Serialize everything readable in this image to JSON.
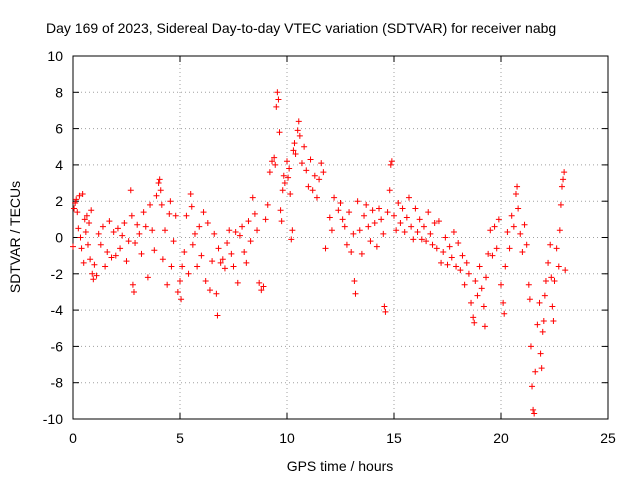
{
  "chart_data": {
    "type": "scatter",
    "title": "Day 169 of 2023, Sidereal Day-to-day VTEC variation (SDTVAR) for receiver nabg",
    "xlabel": "GPS time / hours",
    "ylabel": "SDTVAR / TECUs",
    "xlim": [
      0,
      25
    ],
    "ylim": [
      -10,
      10
    ],
    "xticks": [
      0,
      5,
      10,
      15,
      20,
      25
    ],
    "yticks": [
      -10,
      -8,
      -6,
      -4,
      -2,
      0,
      2,
      4,
      6,
      8,
      10
    ],
    "grid": true,
    "marker": "+",
    "color": "#ff0000",
    "series": [
      {
        "name": "SDTVAR",
        "points": [
          [
            0.0,
            -0.5
          ],
          [
            0.05,
            1.6
          ],
          [
            0.1,
            1.9
          ],
          [
            0.15,
            2.1
          ],
          [
            0.2,
            1.4
          ],
          [
            0.25,
            0.5
          ],
          [
            0.3,
            2.3
          ],
          [
            0.35,
            0.0
          ],
          [
            0.4,
            -0.6
          ],
          [
            0.45,
            2.4
          ],
          [
            0.5,
            -1.4
          ],
          [
            0.55,
            1.0
          ],
          [
            0.6,
            0.3
          ],
          [
            0.65,
            1.2
          ],
          [
            0.7,
            -0.4
          ],
          [
            0.75,
            0.8
          ],
          [
            0.8,
            -1.2
          ],
          [
            0.85,
            1.5
          ],
          [
            0.9,
            -2.0
          ],
          [
            0.95,
            -2.3
          ],
          [
            1.0,
            -1.5
          ],
          [
            1.1,
            -2.1
          ],
          [
            1.2,
            0.2
          ],
          [
            1.3,
            -0.4
          ],
          [
            1.4,
            0.6
          ],
          [
            1.5,
            -1.6
          ],
          [
            1.6,
            -0.8
          ],
          [
            1.7,
            0.9
          ],
          [
            1.8,
            -1.1
          ],
          [
            1.9,
            0.3
          ],
          [
            2.0,
            -1.0
          ],
          [
            2.1,
            0.5
          ],
          [
            2.2,
            -0.6
          ],
          [
            2.3,
            0.1
          ],
          [
            2.4,
            0.8
          ],
          [
            2.5,
            -1.3
          ],
          [
            2.6,
            -0.2
          ],
          [
            2.7,
            2.6
          ],
          [
            2.75,
            1.2
          ],
          [
            2.8,
            -2.6
          ],
          [
            2.85,
            -3.0
          ],
          [
            2.9,
            -0.3
          ],
          [
            3.0,
            0.7
          ],
          [
            3.1,
            0.2
          ],
          [
            3.2,
            -0.9
          ],
          [
            3.3,
            1.4
          ],
          [
            3.4,
            0.6
          ],
          [
            3.5,
            -2.2
          ],
          [
            3.6,
            1.8
          ],
          [
            3.7,
            0.4
          ],
          [
            3.8,
            -0.7
          ],
          [
            3.9,
            2.3
          ],
          [
            4.0,
            3.0
          ],
          [
            4.05,
            3.2
          ],
          [
            4.1,
            2.6
          ],
          [
            4.15,
            1.8
          ],
          [
            4.2,
            -1.2
          ],
          [
            4.3,
            0.4
          ],
          [
            4.4,
            -2.6
          ],
          [
            4.5,
            1.3
          ],
          [
            4.55,
            2.0
          ],
          [
            4.6,
            -1.6
          ],
          [
            4.7,
            -0.2
          ],
          [
            4.8,
            1.2
          ],
          [
            4.9,
            -3.0
          ],
          [
            5.0,
            -2.4
          ],
          [
            5.05,
            -3.4
          ],
          [
            5.1,
            -1.6
          ],
          [
            5.2,
            -0.8
          ],
          [
            5.3,
            1.2
          ],
          [
            5.4,
            -2.0
          ],
          [
            5.5,
            2.4
          ],
          [
            5.55,
            1.7
          ],
          [
            5.6,
            -0.4
          ],
          [
            5.7,
            0.2
          ],
          [
            5.8,
            -1.6
          ],
          [
            5.9,
            0.6
          ],
          [
            6.0,
            -1.0
          ],
          [
            6.1,
            1.4
          ],
          [
            6.2,
            -2.4
          ],
          [
            6.3,
            0.8
          ],
          [
            6.4,
            -2.9
          ],
          [
            6.5,
            -1.3
          ],
          [
            6.6,
            0.2
          ],
          [
            6.7,
            -3.1
          ],
          [
            6.75,
            -4.3
          ],
          [
            6.8,
            -0.6
          ],
          [
            6.9,
            -1.4
          ],
          [
            7.0,
            -1.2
          ],
          [
            7.1,
            -1.7
          ],
          [
            7.2,
            -0.3
          ],
          [
            7.3,
            0.4
          ],
          [
            7.4,
            -0.9
          ],
          [
            7.5,
            -1.6
          ],
          [
            7.6,
            0.3
          ],
          [
            7.7,
            -2.5
          ],
          [
            7.8,
            0.1
          ],
          [
            7.9,
            0.6
          ],
          [
            8.0,
            -0.8
          ],
          [
            8.1,
            -1.4
          ],
          [
            8.2,
            0.9
          ],
          [
            8.3,
            -0.2
          ],
          [
            8.4,
            2.2
          ],
          [
            8.5,
            1.3
          ],
          [
            8.6,
            0.4
          ],
          [
            8.7,
            -2.5
          ],
          [
            8.8,
            -2.9
          ],
          [
            8.9,
            -2.7
          ],
          [
            9.0,
            1.0
          ],
          [
            9.1,
            1.8
          ],
          [
            9.2,
            3.6
          ],
          [
            9.3,
            4.2
          ],
          [
            9.4,
            4.4
          ],
          [
            9.45,
            4.0
          ],
          [
            9.5,
            7.2
          ],
          [
            9.55,
            8.0
          ],
          [
            9.6,
            7.6
          ],
          [
            9.65,
            5.8
          ],
          [
            9.7,
            1.5
          ],
          [
            9.75,
            0.9
          ],
          [
            9.8,
            2.6
          ],
          [
            9.85,
            3.4
          ],
          [
            9.9,
            3.0
          ],
          [
            10.0,
            4.2
          ],
          [
            10.05,
            3.3
          ],
          [
            10.1,
            3.8
          ],
          [
            10.15,
            2.4
          ],
          [
            10.2,
            -0.1
          ],
          [
            10.25,
            0.4
          ],
          [
            10.3,
            4.8
          ],
          [
            10.35,
            5.2
          ],
          [
            10.4,
            4.6
          ],
          [
            10.5,
            5.9
          ],
          [
            10.55,
            6.4
          ],
          [
            10.6,
            5.6
          ],
          [
            10.7,
            4.1
          ],
          [
            10.8,
            5.0
          ],
          [
            10.9,
            3.7
          ],
          [
            11.0,
            2.8
          ],
          [
            11.1,
            4.3
          ],
          [
            11.2,
            2.6
          ],
          [
            11.3,
            3.4
          ],
          [
            11.4,
            2.2
          ],
          [
            11.5,
            3.2
          ],
          [
            11.6,
            4.1
          ],
          [
            11.7,
            3.6
          ],
          [
            11.8,
            -0.6
          ],
          [
            12.0,
            1.1
          ],
          [
            12.1,
            0.4
          ],
          [
            12.2,
            2.2
          ],
          [
            12.4,
            1.5
          ],
          [
            12.5,
            1.9
          ],
          [
            12.6,
            1.0
          ],
          [
            12.7,
            0.6
          ],
          [
            12.8,
            -0.4
          ],
          [
            12.9,
            1.4
          ],
          [
            13.0,
            -0.8
          ],
          [
            13.1,
            0.2
          ],
          [
            13.15,
            -2.4
          ],
          [
            13.2,
            -3.1
          ],
          [
            13.3,
            2.0
          ],
          [
            13.4,
            0.4
          ],
          [
            13.5,
            -0.9
          ],
          [
            13.6,
            1.2
          ],
          [
            13.7,
            1.8
          ],
          [
            13.8,
            0.6
          ],
          [
            13.9,
            -0.2
          ],
          [
            14.0,
            1.5
          ],
          [
            14.1,
            0.8
          ],
          [
            14.2,
            -0.5
          ],
          [
            14.3,
            1.6
          ],
          [
            14.4,
            1.0
          ],
          [
            14.5,
            0.2
          ],
          [
            14.55,
            -3.8
          ],
          [
            14.6,
            -4.1
          ],
          [
            14.7,
            1.4
          ],
          [
            14.8,
            2.6
          ],
          [
            14.85,
            4.0
          ],
          [
            14.9,
            4.2
          ],
          [
            15.0,
            1.2
          ],
          [
            15.1,
            0.4
          ],
          [
            15.2,
            1.9
          ],
          [
            15.3,
            0.8
          ],
          [
            15.4,
            1.6
          ],
          [
            15.5,
            0.3
          ],
          [
            15.6,
            1.1
          ],
          [
            15.7,
            2.2
          ],
          [
            15.8,
            0.6
          ],
          [
            15.9,
            -0.1
          ],
          [
            16.0,
            1.6
          ],
          [
            16.1,
            0.3
          ],
          [
            16.2,
            1.0
          ],
          [
            16.3,
            -0.1
          ],
          [
            16.4,
            0.6
          ],
          [
            16.5,
            -0.2
          ],
          [
            16.6,
            1.4
          ],
          [
            16.7,
            0.2
          ],
          [
            16.8,
            -0.4
          ],
          [
            16.9,
            0.8
          ],
          [
            17.0,
            -0.6
          ],
          [
            17.1,
            0.9
          ],
          [
            17.2,
            -1.4
          ],
          [
            17.3,
            -0.8
          ],
          [
            17.4,
            0.0
          ],
          [
            17.5,
            -1.5
          ],
          [
            17.6,
            -0.5
          ],
          [
            17.7,
            -1.1
          ],
          [
            17.8,
            0.3
          ],
          [
            17.9,
            -1.6
          ],
          [
            18.0,
            -0.3
          ],
          [
            18.1,
            -1.8
          ],
          [
            18.2,
            -1.0
          ],
          [
            18.3,
            -2.6
          ],
          [
            18.4,
            -1.4
          ],
          [
            18.5,
            -2.0
          ],
          [
            18.6,
            -3.6
          ],
          [
            18.7,
            -4.4
          ],
          [
            18.75,
            -4.7
          ],
          [
            18.8,
            -2.4
          ],
          [
            18.9,
            -3.2
          ],
          [
            19.0,
            -1.6
          ],
          [
            19.1,
            -2.8
          ],
          [
            19.2,
            -3.8
          ],
          [
            19.25,
            -4.9
          ],
          [
            19.3,
            -2.2
          ],
          [
            19.4,
            -0.9
          ],
          [
            19.5,
            0.4
          ],
          [
            19.6,
            -1.0
          ],
          [
            19.7,
            0.6
          ],
          [
            19.8,
            -0.6
          ],
          [
            19.9,
            1.0
          ],
          [
            20.0,
            -2.6
          ],
          [
            20.1,
            -3.6
          ],
          [
            20.15,
            -4.2
          ],
          [
            20.2,
            -1.6
          ],
          [
            20.3,
            0.3
          ],
          [
            20.4,
            -0.6
          ],
          [
            20.5,
            1.2
          ],
          [
            20.6,
            0.6
          ],
          [
            20.7,
            2.4
          ],
          [
            20.75,
            2.8
          ],
          [
            20.8,
            1.6
          ],
          [
            20.9,
            0.2
          ],
          [
            21.0,
            -0.8
          ],
          [
            21.1,
            0.7
          ],
          [
            21.2,
            -0.4
          ],
          [
            21.3,
            -2.6
          ],
          [
            21.35,
            -3.4
          ],
          [
            21.4,
            -6.0
          ],
          [
            21.45,
            -8.2
          ],
          [
            21.5,
            -9.5
          ],
          [
            21.55,
            -9.7
          ],
          [
            21.6,
            -7.4
          ],
          [
            21.7,
            -4.8
          ],
          [
            21.8,
            -3.6
          ],
          [
            21.85,
            -6.4
          ],
          [
            21.9,
            -7.2
          ],
          [
            21.95,
            -5.2
          ],
          [
            22.0,
            -4.6
          ],
          [
            22.05,
            -3.2
          ],
          [
            22.1,
            -2.4
          ],
          [
            22.2,
            -1.4
          ],
          [
            22.3,
            -0.4
          ],
          [
            22.35,
            -2.2
          ],
          [
            22.4,
            -3.8
          ],
          [
            22.45,
            -4.6
          ],
          [
            22.5,
            -2.4
          ],
          [
            22.6,
            -0.6
          ],
          [
            22.7,
            -1.6
          ],
          [
            22.75,
            0.4
          ],
          [
            22.8,
            1.8
          ],
          [
            22.85,
            2.8
          ],
          [
            22.9,
            3.2
          ],
          [
            22.95,
            3.6
          ],
          [
            23.0,
            -1.8
          ]
        ]
      }
    ]
  }
}
